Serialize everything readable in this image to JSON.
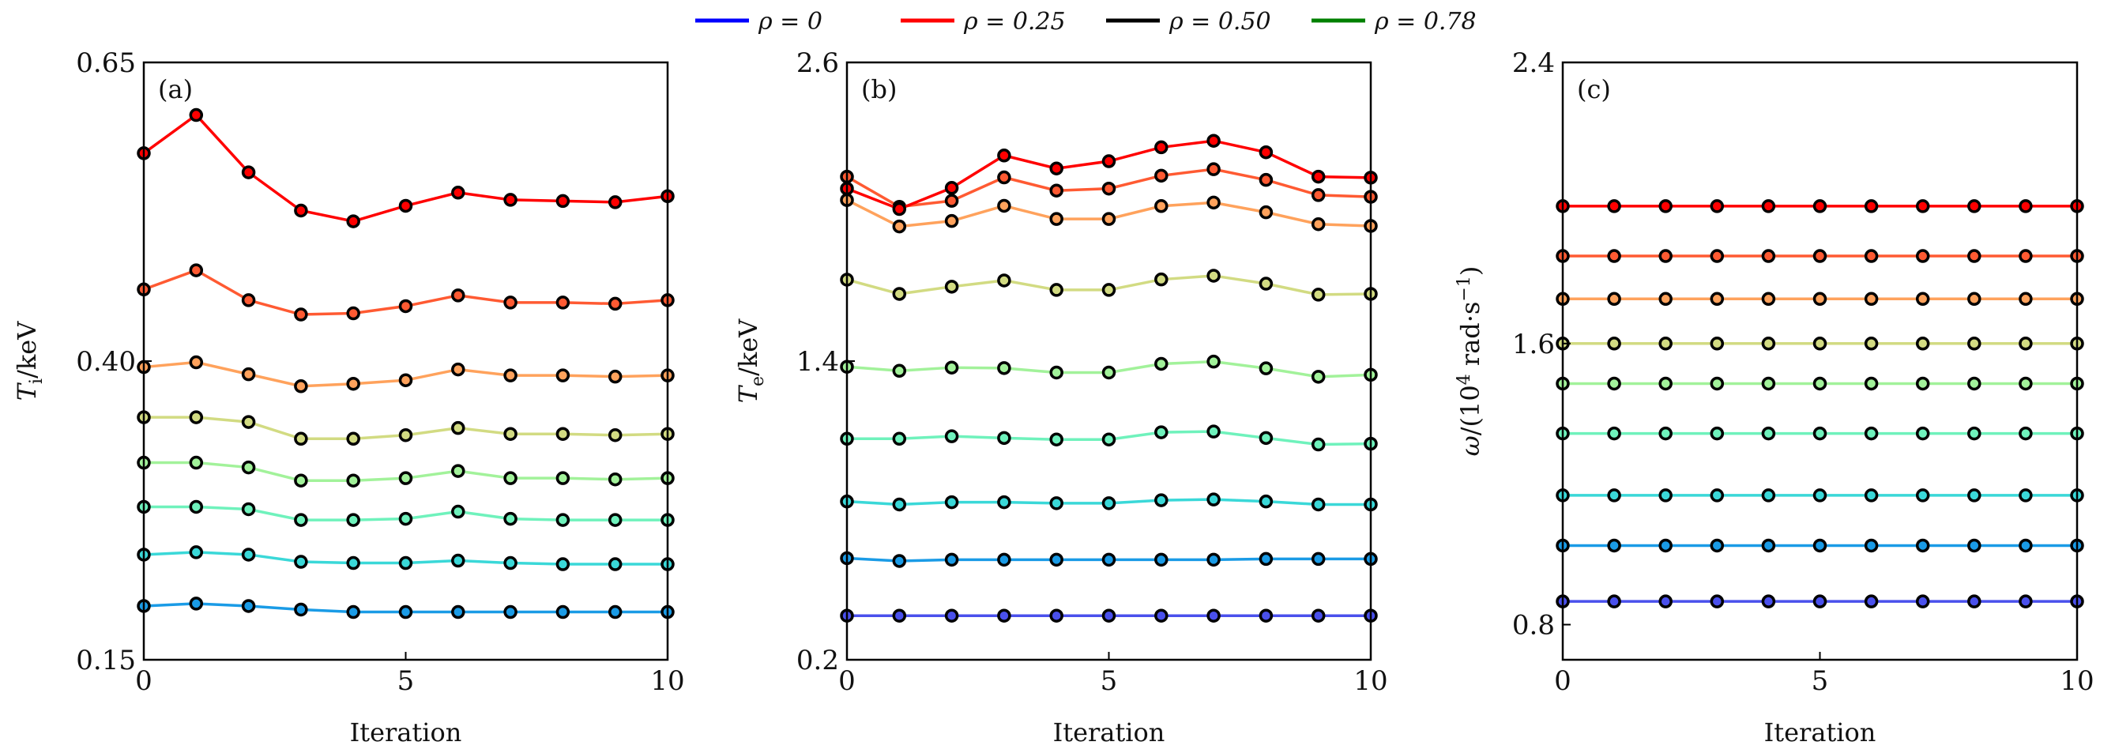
{
  "chart_data": [
    {
      "type": "line",
      "panel_label": "(a)",
      "xlabel": "Iteration",
      "ylabel_parts": [
        {
          "t": "T",
          "style": "italic"
        },
        {
          "t": "i",
          "style": "sub"
        },
        {
          "t": "/keV",
          "style": "normal"
        }
      ],
      "xlim": [
        0,
        10
      ],
      "ylim": [
        0.15,
        0.65
      ],
      "xticks": [
        0,
        5,
        10
      ],
      "yticks": [
        0.15,
        0.4,
        0.65
      ],
      "ytick_labels": [
        "0.15",
        "0.40",
        "0.65"
      ],
      "x": [
        0,
        1,
        2,
        3,
        4,
        5,
        6,
        7,
        8,
        9,
        10
      ],
      "series": [
        {
          "color": "#1a9be6",
          "values": [
            0.195,
            0.197,
            0.195,
            0.192,
            0.19,
            0.19,
            0.19,
            0.19,
            0.19,
            0.19,
            0.19
          ]
        },
        {
          "color": "#3ad8d8",
          "values": [
            0.238,
            0.24,
            0.238,
            0.232,
            0.231,
            0.231,
            0.233,
            0.231,
            0.23,
            0.23,
            0.23
          ]
        },
        {
          "color": "#6ff2bc",
          "values": [
            0.278,
            0.278,
            0.276,
            0.267,
            0.267,
            0.268,
            0.274,
            0.268,
            0.267,
            0.267,
            0.267
          ]
        },
        {
          "color": "#a2f29a",
          "values": [
            0.315,
            0.315,
            0.311,
            0.3,
            0.3,
            0.302,
            0.308,
            0.302,
            0.302,
            0.301,
            0.302
          ]
        },
        {
          "color": "#d2db82",
          "values": [
            0.353,
            0.353,
            0.349,
            0.335,
            0.335,
            0.338,
            0.344,
            0.339,
            0.339,
            0.338,
            0.339
          ]
        },
        {
          "color": "#ffa25c",
          "values": [
            0.395,
            0.399,
            0.389,
            0.379,
            0.381,
            0.384,
            0.393,
            0.388,
            0.388,
            0.387,
            0.388
          ]
        },
        {
          "color": "#ff5a32",
          "values": [
            0.46,
            0.476,
            0.451,
            0.439,
            0.44,
            0.446,
            0.455,
            0.449,
            0.449,
            0.448,
            0.451
          ]
        },
        {
          "color": "#ff0000",
          "values": [
            0.574,
            0.606,
            0.558,
            0.526,
            0.517,
            0.53,
            0.541,
            0.535,
            0.534,
            0.533,
            0.538
          ]
        }
      ]
    },
    {
      "type": "line",
      "panel_label": "(b)",
      "xlabel": "Iteration",
      "ylabel_parts": [
        {
          "t": "T",
          "style": "italic"
        },
        {
          "t": "e",
          "style": "sub"
        },
        {
          "t": "/keV",
          "style": "normal"
        }
      ],
      "xlim": [
        0,
        10
      ],
      "ylim": [
        0.2,
        2.6
      ],
      "xticks": [
        0,
        5,
        10
      ],
      "yticks": [
        0.2,
        1.4,
        2.6
      ],
      "ytick_labels": [
        "0.2",
        "1.4",
        "2.6"
      ],
      "x": [
        0,
        1,
        2,
        3,
        4,
        5,
        6,
        7,
        8,
        9,
        10
      ],
      "series": [
        {
          "color": "#4a50ec",
          "values": [
            0.377,
            0.377,
            0.377,
            0.377,
            0.377,
            0.377,
            0.377,
            0.377,
            0.377,
            0.377,
            0.377
          ]
        },
        {
          "color": "#1a9be6",
          "values": [
            0.608,
            0.597,
            0.602,
            0.602,
            0.602,
            0.602,
            0.602,
            0.602,
            0.605,
            0.605,
            0.605
          ]
        },
        {
          "color": "#3ad8d8",
          "values": [
            0.836,
            0.824,
            0.833,
            0.833,
            0.829,
            0.829,
            0.841,
            0.844,
            0.836,
            0.824,
            0.824
          ]
        },
        {
          "color": "#6ff2bc",
          "values": [
            1.088,
            1.088,
            1.098,
            1.091,
            1.085,
            1.085,
            1.114,
            1.117,
            1.091,
            1.065,
            1.068
          ]
        },
        {
          "color": "#a2f29a",
          "values": [
            1.377,
            1.361,
            1.374,
            1.372,
            1.354,
            1.354,
            1.389,
            1.398,
            1.371,
            1.337,
            1.345
          ]
        },
        {
          "color": "#d2db82",
          "values": [
            1.727,
            1.67,
            1.699,
            1.724,
            1.686,
            1.686,
            1.728,
            1.743,
            1.711,
            1.667,
            1.67
          ]
        },
        {
          "color": "#ffa25c",
          "values": [
            2.047,
            1.941,
            1.963,
            2.024,
            1.971,
            1.971,
            2.023,
            2.037,
            1.998,
            1.95,
            1.943
          ]
        },
        {
          "color": "#ff5a32",
          "values": [
            2.141,
            2.02,
            2.044,
            2.138,
            2.085,
            2.093,
            2.145,
            2.171,
            2.128,
            2.067,
            2.06
          ]
        },
        {
          "color": "#ff0000",
          "values": [
            2.093,
            2.011,
            2.096,
            2.226,
            2.174,
            2.203,
            2.259,
            2.285,
            2.239,
            2.141,
            2.137
          ]
        }
      ]
    },
    {
      "type": "line",
      "panel_label": "(c)",
      "xlabel": "Iteration",
      "ylabel_parts": [
        {
          "t": "ω",
          "style": "italic"
        },
        {
          "t": "/(10",
          "style": "normal"
        },
        {
          "t": "4",
          "style": "sup"
        },
        {
          "t": " rad·s",
          "style": "normal"
        },
        {
          "t": "−1",
          "style": "sup"
        },
        {
          "t": ")",
          "style": "normal"
        }
      ],
      "xlim": [
        0,
        10
      ],
      "ylim": [
        0.7,
        2.4
      ],
      "xticks": [
        0,
        5,
        10
      ],
      "yticks": [
        0.8,
        1.6,
        2.4
      ],
      "ytick_labels": [
        "0.8",
        "1.6",
        "2.4"
      ],
      "x": [
        0,
        1,
        2,
        3,
        4,
        5,
        6,
        7,
        8,
        9,
        10
      ],
      "series": [
        {
          "color": "#4a50ec",
          "values": [
            0.866,
            0.866,
            0.866,
            0.866,
            0.866,
            0.866,
            0.866,
            0.866,
            0.866,
            0.866,
            0.866
          ]
        },
        {
          "color": "#1a9be6",
          "values": [
            1.025,
            1.025,
            1.025,
            1.025,
            1.025,
            1.025,
            1.025,
            1.025,
            1.025,
            1.025,
            1.025
          ]
        },
        {
          "color": "#3ad8d8",
          "values": [
            1.168,
            1.168,
            1.168,
            1.168,
            1.168,
            1.168,
            1.168,
            1.168,
            1.168,
            1.168,
            1.168
          ]
        },
        {
          "color": "#6ff2bc",
          "values": [
            1.344,
            1.344,
            1.344,
            1.344,
            1.344,
            1.344,
            1.344,
            1.344,
            1.344,
            1.344,
            1.344
          ]
        },
        {
          "color": "#a2f29a",
          "values": [
            1.486,
            1.486,
            1.486,
            1.486,
            1.486,
            1.486,
            1.486,
            1.486,
            1.486,
            1.486,
            1.486
          ]
        },
        {
          "color": "#d2db82",
          "values": [
            1.6,
            1.6,
            1.6,
            1.6,
            1.6,
            1.6,
            1.6,
            1.6,
            1.6,
            1.6,
            1.6
          ]
        },
        {
          "color": "#ffa25c",
          "values": [
            1.727,
            1.727,
            1.727,
            1.727,
            1.727,
            1.727,
            1.727,
            1.727,
            1.727,
            1.727,
            1.727
          ]
        },
        {
          "color": "#ff5a32",
          "values": [
            1.849,
            1.849,
            1.849,
            1.849,
            1.849,
            1.849,
            1.849,
            1.849,
            1.849,
            1.849,
            1.849
          ]
        },
        {
          "color": "#ff0000",
          "values": [
            1.991,
            1.991,
            1.991,
            1.991,
            1.991,
            1.991,
            1.991,
            1.991,
            1.991,
            1.991,
            1.991
          ]
        }
      ]
    }
  ],
  "legend": {
    "placement": "top-center",
    "entries": [
      {
        "label": "ρ = 0",
        "color": "#0000ff"
      },
      {
        "label": "ρ = 0.25",
        "color": "#ff0000"
      },
      {
        "label": "ρ = 0.50",
        "color": "#000000"
      },
      {
        "label": "ρ = 0.78",
        "color": "#008000"
      }
    ]
  }
}
